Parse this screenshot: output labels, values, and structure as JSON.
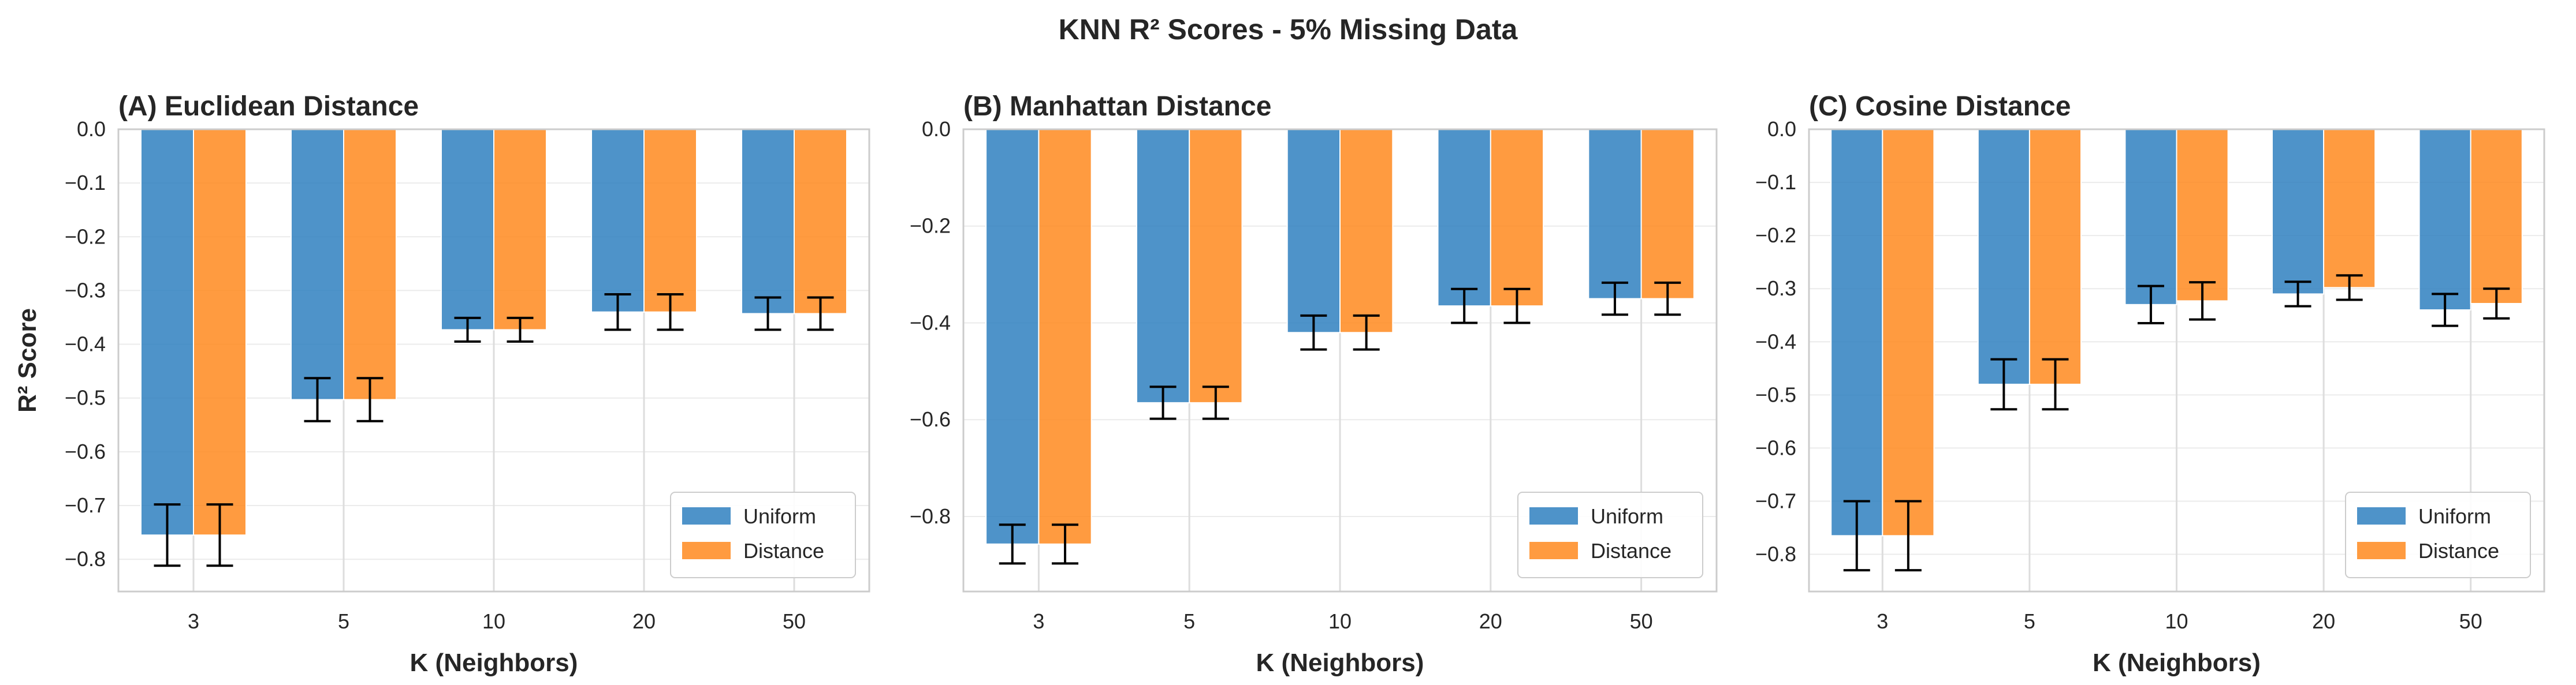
{
  "figure_title": "KNN R² Scores - 5% Missing Data",
  "colors": {
    "uniform": "#2f80bf",
    "distance": "#ff8a1f"
  },
  "chart_data": [
    {
      "type": "bar",
      "title": "(A) Euclidean Distance",
      "xlabel": "K (Neighbors)",
      "ylabel": "R² Score",
      "categories": [
        "3",
        "5",
        "10",
        "20",
        "50"
      ],
      "ylim": [
        -0.86,
        0.0
      ],
      "yticks": [
        0.0,
        -0.1,
        -0.2,
        -0.3,
        -0.4,
        -0.5,
        -0.6,
        -0.7,
        -0.8
      ],
      "ytick_labels": [
        "0.0",
        "−0.1",
        "−0.2",
        "−0.3",
        "−0.4",
        "−0.5",
        "−0.6",
        "−0.7",
        "−0.8"
      ],
      "grid": true,
      "legend": "lower-right",
      "series": [
        {
          "name": "Uniform",
          "values": [
            -0.755,
            -0.503,
            -0.373,
            -0.34,
            -0.343
          ],
          "errors": [
            0.057,
            0.04,
            0.022,
            0.033,
            0.03
          ]
        },
        {
          "name": "Distance",
          "values": [
            -0.755,
            -0.503,
            -0.373,
            -0.34,
            -0.343
          ],
          "errors": [
            0.057,
            0.04,
            0.022,
            0.033,
            0.03
          ]
        }
      ]
    },
    {
      "type": "bar",
      "title": "(B) Manhattan Distance",
      "xlabel": "K (Neighbors)",
      "ylabel": "",
      "categories": [
        "3",
        "5",
        "10",
        "20",
        "50"
      ],
      "ylim": [
        -0.955,
        0.0
      ],
      "yticks": [
        0.0,
        -0.2,
        -0.4,
        -0.6,
        -0.8
      ],
      "ytick_labels": [
        "0.0",
        "−0.2",
        "−0.4",
        "−0.6",
        "−0.8"
      ],
      "grid": true,
      "legend": "lower-right",
      "series": [
        {
          "name": "Uniform",
          "values": [
            -0.857,
            -0.565,
            -0.42,
            -0.365,
            -0.35
          ],
          "errors": [
            0.04,
            0.033,
            0.035,
            0.035,
            0.033
          ]
        },
        {
          "name": "Distance",
          "values": [
            -0.857,
            -0.565,
            -0.42,
            -0.365,
            -0.35
          ],
          "errors": [
            0.04,
            0.033,
            0.035,
            0.035,
            0.033
          ]
        }
      ]
    },
    {
      "type": "bar",
      "title": "(C) Cosine Distance",
      "xlabel": "K (Neighbors)",
      "ylabel": "",
      "categories": [
        "3",
        "5",
        "10",
        "20",
        "50"
      ],
      "ylim": [
        -0.87,
        0.0
      ],
      "yticks": [
        0.0,
        -0.1,
        -0.2,
        -0.3,
        -0.4,
        -0.5,
        -0.6,
        -0.7,
        -0.8
      ],
      "ytick_labels": [
        "0.0",
        "−0.1",
        "−0.2",
        "−0.3",
        "−0.4",
        "−0.5",
        "−0.6",
        "−0.7",
        "−0.8"
      ],
      "grid": true,
      "legend": "lower-right",
      "series": [
        {
          "name": "Uniform",
          "values": [
            -0.765,
            -0.48,
            -0.33,
            -0.31,
            -0.34
          ],
          "errors": [
            0.065,
            0.047,
            0.035,
            0.023,
            0.03
          ]
        },
        {
          "name": "Distance",
          "values": [
            -0.765,
            -0.48,
            -0.323,
            -0.298,
            -0.328
          ],
          "errors": [
            0.065,
            0.047,
            0.035,
            0.023,
            0.028
          ]
        }
      ]
    }
  ]
}
